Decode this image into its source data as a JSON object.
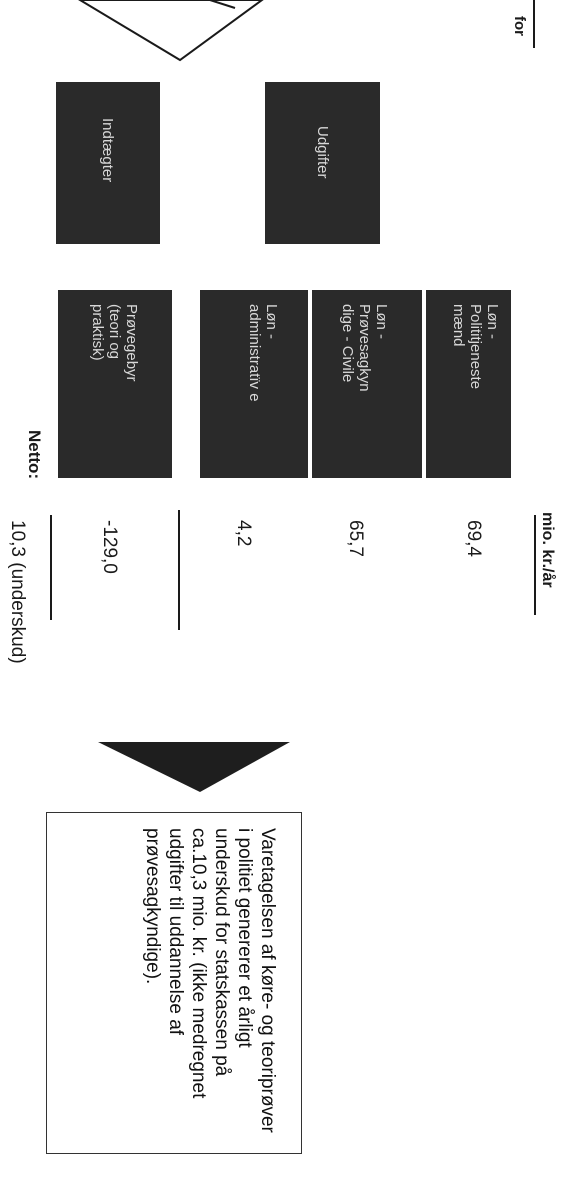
{
  "header": {
    "partial_text": "for"
  },
  "boxes": {
    "indtaegter": "Indtægter",
    "udgifter": "Udgifter",
    "lon_politi": "Løn - Polititjeneste mænd",
    "lon_provesagkyndige": "Løn - Prøvesagkyn dige - Civile",
    "lon_admin": "Løn - administratïv e",
    "provegebyr": "Prøvegebyr (teori og praktisk)"
  },
  "values": {
    "unit_header": "mio. kr./år",
    "lon_politi": "69,4",
    "lon_provesagkyndige": "65,7",
    "lon_admin": "4,2",
    "provegebyr": "-129,0",
    "netto_label": "Netto:",
    "netto_value": "10,3 (underskud)"
  },
  "conclusion": {
    "text": "Varetagelsen af køre- og teoriprøver i politiet genererer et årligt underskud for statskassen på ca.10,3 mio. kr. (ikke medregnet udgifter til uddannelse af prøvesagkyndige)."
  },
  "colors": {
    "box_fill": "#2a2a2a",
    "box_text": "#d8d8d8",
    "arrow_fill": "#1e1e1e"
  }
}
